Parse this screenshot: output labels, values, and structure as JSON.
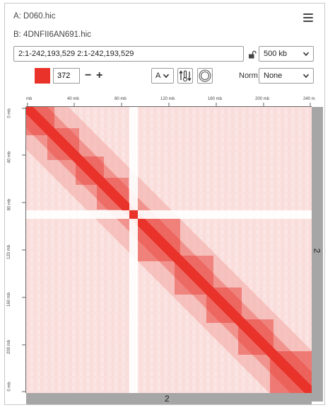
{
  "dataset": {
    "a_label": "A: D060.hic",
    "b_label": "B: 4DNFII6AN691.hic"
  },
  "icons": {
    "menu": "hamburger-menu-icon",
    "lock": "unlock-icon",
    "chevron": "chevron-down-icon",
    "color_scale": "thermometer-arrows-icon",
    "balance": "circle-rings-icon"
  },
  "locus": {
    "value": "2:1-242,193,529 2:1-242,193,529"
  },
  "resolution": {
    "selected": "500 kb"
  },
  "color_scale": {
    "low_color": "#ffffff",
    "high_color": "#e8322a",
    "value": "372",
    "minus": "−",
    "plus": "+"
  },
  "display_mode": {
    "selected": "A"
  },
  "norm": {
    "label": "Norm",
    "selected": "None"
  },
  "ruler": {
    "top_ticks": [
      "mb",
      "40 mb",
      "80 mb",
      "120 mb",
      "160 mb",
      "200 mb",
      "240 m"
    ],
    "left_ticks": [
      "0 mb",
      "40 mb",
      "80 mb",
      "120 mb",
      "160 mb",
      "200 mb",
      "0 mb"
    ]
  },
  "chromosome": {
    "x_label": "2",
    "y_label": "2"
  },
  "colors": {
    "contact": "#e8322a",
    "bar": "#a6a6a6"
  }
}
